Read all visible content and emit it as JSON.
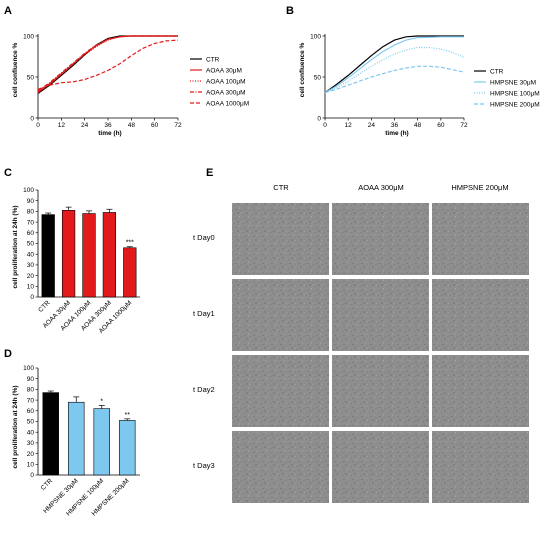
{
  "panels": {
    "A": "A",
    "B": "B",
    "C": "C",
    "D": "D",
    "E": "E"
  },
  "chart_data": [
    {
      "id": "A",
      "type": "line",
      "xlabel": "time (h)",
      "ylabel": "cell confluence %",
      "xlim": [
        0,
        72
      ],
      "ylim": [
        0,
        100
      ],
      "xticks": [
        "0",
        "12",
        "24",
        "36",
        "48",
        "60",
        "72"
      ],
      "yticks": [
        "0",
        "50",
        "100"
      ],
      "legend_position": "right",
      "series": [
        {
          "name": "CTR",
          "color": "#000000",
          "style": "solid",
          "x": [
            0,
            6,
            12,
            18,
            24,
            30,
            36,
            42,
            48,
            60,
            72
          ],
          "y": [
            30,
            40,
            52,
            64,
            77,
            89,
            97,
            100,
            100,
            100,
            100
          ]
        },
        {
          "name": "AOAA 30μM",
          "color": "#e31a1c",
          "style": "solid",
          "x": [
            0,
            6,
            12,
            18,
            24,
            30,
            36,
            42,
            48,
            60,
            72
          ],
          "y": [
            32,
            42,
            54,
            66,
            78,
            88,
            96,
            99,
            100,
            100,
            100
          ]
        },
        {
          "name": "AOAA 100μM",
          "color": "#e31a1c",
          "style": "dotted",
          "x": [
            0,
            6,
            12,
            18,
            24,
            30,
            36,
            42,
            48,
            60,
            72
          ],
          "y": [
            31,
            41,
            53,
            65,
            77,
            87,
            95,
            99,
            100,
            100,
            100
          ]
        },
        {
          "name": "AOAA 300μM",
          "color": "#e31a1c",
          "style": "dashdot",
          "x": [
            0,
            6,
            12,
            18,
            24,
            30,
            36,
            42,
            48,
            60,
            72
          ],
          "y": [
            33,
            43,
            55,
            67,
            79,
            89,
            96,
            99,
            100,
            100,
            100
          ]
        },
        {
          "name": "AOAA 1000μM",
          "color": "#e31a1c",
          "style": "dashed",
          "x": [
            0,
            6,
            12,
            18,
            24,
            30,
            36,
            42,
            48,
            54,
            60,
            66,
            72
          ],
          "y": [
            35,
            40,
            43,
            44,
            47,
            52,
            58,
            66,
            76,
            85,
            91,
            94,
            95
          ]
        }
      ]
    },
    {
      "id": "B",
      "type": "line",
      "xlabel": "time (h)",
      "ylabel": "cell confluence %",
      "xlim": [
        0,
        72
      ],
      "ylim": [
        0,
        100
      ],
      "xticks": [
        "0",
        "12",
        "24",
        "36",
        "48",
        "60",
        "72"
      ],
      "yticks": [
        "0",
        "50",
        "100"
      ],
      "legend_position": "right",
      "series": [
        {
          "name": "CTR",
          "color": "#000000",
          "style": "solid",
          "x": [
            0,
            6,
            12,
            18,
            24,
            30,
            36,
            42,
            48,
            60,
            72
          ],
          "y": [
            31,
            41,
            52,
            64,
            76,
            87,
            95,
            99,
            100,
            100,
            100
          ]
        },
        {
          "name": "HMPSNE 30μM",
          "color": "#7ec8ef",
          "style": "solid",
          "x": [
            0,
            6,
            12,
            18,
            24,
            30,
            36,
            42,
            48,
            60,
            72
          ],
          "y": [
            31,
            39,
            49,
            60,
            71,
            81,
            89,
            95,
            98,
            99,
            99
          ]
        },
        {
          "name": "HMPSNE 100μM",
          "color": "#7ec8ef",
          "style": "dotted",
          "x": [
            0,
            6,
            12,
            18,
            24,
            30,
            36,
            42,
            48,
            54,
            60,
            66,
            72
          ],
          "y": [
            31,
            37,
            45,
            54,
            63,
            71,
            78,
            83,
            86,
            86,
            84,
            80,
            74
          ]
        },
        {
          "name": "HMPSNE 200μM",
          "color": "#7ec8ef",
          "style": "dashed",
          "x": [
            0,
            6,
            12,
            18,
            24,
            30,
            36,
            42,
            48,
            54,
            60,
            66,
            72
          ],
          "y": [
            31,
            35,
            40,
            45,
            50,
            54,
            58,
            61,
            63,
            63,
            62,
            59,
            56
          ]
        }
      ]
    },
    {
      "id": "C",
      "type": "bar",
      "ylabel": "cell proliferation at 24h (%)",
      "ylim": [
        0,
        100
      ],
      "yticks": [
        "0",
        "10",
        "20",
        "30",
        "40",
        "50",
        "60",
        "70",
        "80",
        "90",
        "100"
      ],
      "categories": [
        "CTR",
        "AOAA 30μM",
        "AOAA 100μM",
        "AOAA 300μM",
        "AOAA 1000μM"
      ],
      "values": [
        77,
        81,
        78,
        79,
        46
      ],
      "errors": [
        1.5,
        3,
        2.5,
        3,
        1
      ],
      "colors": [
        "#000000",
        "#e31a1c",
        "#e31a1c",
        "#e31a1c",
        "#e31a1c"
      ],
      "annotations": [
        "",
        "",
        "",
        "",
        "***"
      ]
    },
    {
      "id": "D",
      "type": "bar",
      "ylabel": "cell proliferation at 24h (%)",
      "ylim": [
        0,
        100
      ],
      "yticks": [
        "0",
        "10",
        "20",
        "30",
        "40",
        "50",
        "60",
        "70",
        "80",
        "90",
        "100"
      ],
      "categories": [
        "CTR",
        "HMPSNE 30μM",
        "HMPSNE 100μM",
        "HMPSNE 200μM"
      ],
      "values": [
        77,
        68,
        62,
        51
      ],
      "errors": [
        1.5,
        5,
        3,
        1.5
      ],
      "colors": [
        "#000000",
        "#7ec8ef",
        "#7ec8ef",
        "#7ec8ef"
      ],
      "annotations": [
        "",
        "",
        "*",
        "**"
      ]
    }
  ],
  "micrographs": {
    "columns": [
      "CTR",
      "AOAA 300μM",
      "HMPSNE 200μM"
    ],
    "rows": [
      "t Day0",
      "t Day1",
      "t Day2",
      "t Day3"
    ]
  }
}
